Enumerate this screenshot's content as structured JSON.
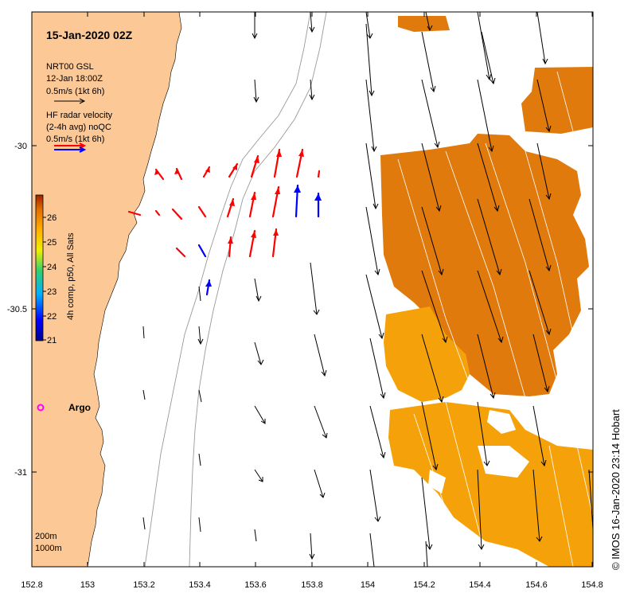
{
  "title": "15-Jan-2020 02Z",
  "model_legend": {
    "line1": "NRT00 GSL",
    "line2": "12-Jan 18:00Z",
    "line3": "0.5m/s (1kt 6h)"
  },
  "radar_legend": {
    "line1": "HF radar velocity",
    "line2": "(2-4h avg) noQC",
    "line3": "0.5m/s (1kt 6h)"
  },
  "colorbar": {
    "label": "4h comp, p50, All Sats",
    "ticks": [
      "21",
      "22",
      "23",
      "24",
      "25",
      "26"
    ],
    "min": 20.8,
    "max": 26.7
  },
  "x_ticks": [
    "152.8",
    "153",
    "153.2",
    "153.4",
    "153.6",
    "153.8",
    "154",
    "154.2",
    "154.4",
    "154.6",
    "154.8"
  ],
  "y_ticks": [
    "-30",
    "-30.5",
    "-31"
  ],
  "argo_label": "Argo",
  "contour_labels": [
    "200m",
    "1000m"
  ],
  "credit": "© IMOS 16-Jan-2020 23:14 Hobart",
  "colors": {
    "land": "#fcc896",
    "sst_dark": "#e07a0c",
    "sst_light": "#f5a20a",
    "radar_red": "#ff0000",
    "radar_blue": "#0000ff",
    "argo": "#ff00ff",
    "model_arrow": "#000000"
  }
}
